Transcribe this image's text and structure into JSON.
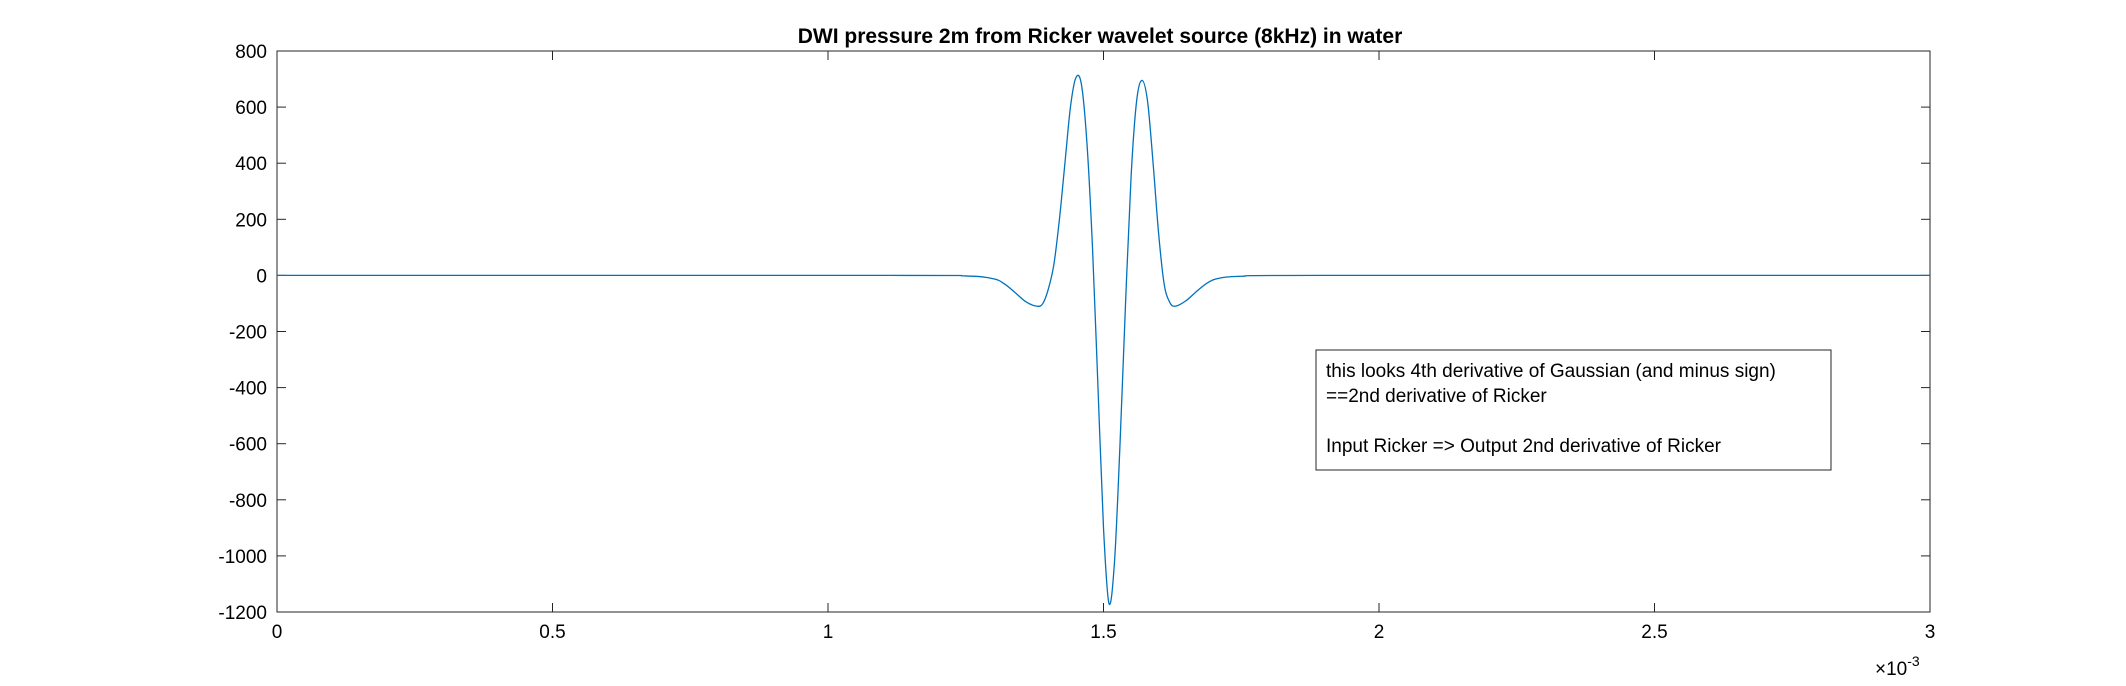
{
  "chart_data": {
    "type": "line",
    "title": "DWI pressure 2m from Ricker wavelet source (8kHz) in water",
    "xlabel": "",
    "ylabel": "",
    "xlim": [
      0,
      0.003
    ],
    "ylim": [
      -1200,
      800
    ],
    "x_ticks": [
      0,
      0.0005,
      0.001,
      0.0015,
      0.002,
      0.0025,
      0.003
    ],
    "x_tick_labels": [
      "0",
      "0.5",
      "1",
      "1.5",
      "2",
      "2.5",
      "3"
    ],
    "x_exponent_label": "×10",
    "x_exponent_power": "-3",
    "y_ticks": [
      800,
      600,
      400,
      200,
      0,
      -200,
      -400,
      -600,
      -800,
      -1000,
      -1200
    ],
    "y_tick_labels": [
      "800",
      "600",
      "400",
      "200",
      "0",
      "-200",
      "-400",
      "-600",
      "-800",
      "-1000",
      "-1200"
    ],
    "grid": false,
    "legend": "none",
    "line_color": "#0072BD",
    "series": [
      {
        "x": [
          0,
          0.0011,
          0.00125,
          0.0013,
          0.00132,
          0.00134,
          0.00136,
          0.00138,
          0.00139,
          0.0014,
          0.00141,
          0.00142,
          0.00143,
          0.00144,
          0.00145,
          0.00146,
          0.00147,
          0.00148,
          0.00149,
          0.0015,
          0.00151,
          0.00152,
          0.00153,
          0.00154,
          0.00155,
          0.00156,
          0.00157,
          0.00158,
          0.00159,
          0.0016,
          0.00161,
          0.00162,
          0.00163,
          0.00165,
          0.00167,
          0.00169,
          0.00171,
          0.00175,
          0.0019,
          0.003
        ],
        "y": [
          0,
          0,
          -2,
          -12,
          -30,
          -62,
          -95,
          -110,
          -100,
          -48,
          40,
          200,
          400,
          600,
          705,
          680,
          470,
          100,
          -400,
          -900,
          -1170,
          -1020,
          -600,
          -100,
          350,
          620,
          695,
          620,
          400,
          150,
          -30,
          -95,
          -110,
          -90,
          -55,
          -25,
          -10,
          -3,
          0,
          0
        ]
      }
    ],
    "annotation": {
      "lines": [
        "this looks 4th derivative of Gaussian (and minus sign)",
        "==2nd derivative of Ricker",
        "",
        "Input Ricker => Output 2nd derivative of Ricker"
      ]
    }
  }
}
